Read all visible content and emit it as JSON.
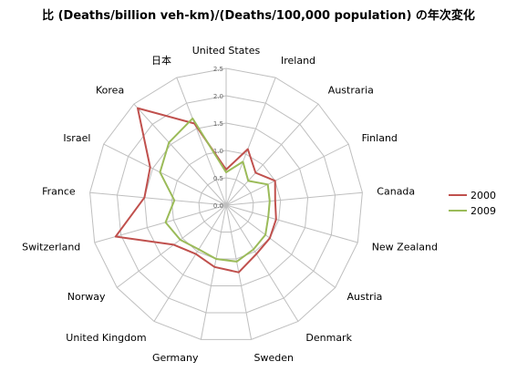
{
  "chart_data": {
    "type": "radar",
    "title": "比 (Deaths/billion veh-km)/(Deaths/100,000 population) の年次変化",
    "categories": [
      "United States",
      "Ireland",
      "Austraria",
      "Finland",
      "Canada",
      "New Zealand",
      "Austria",
      "Denmark",
      "Sweden",
      "Germany",
      "United Kingdom",
      "Norway",
      "Switzerland",
      "France",
      "Israel",
      "Korea",
      "日本"
    ],
    "ticks": [
      "0.0",
      "0.5",
      "1.0",
      "1.5",
      "2.0",
      "2.5"
    ],
    "rlim": [
      0,
      2.5
    ],
    "grid": true,
    "legend_position": "right",
    "series": [
      {
        "name": "2000",
        "color": "#c0504d",
        "values": [
          0.65,
          1.1,
          0.8,
          1.0,
          0.9,
          0.95,
          1.0,
          1.05,
          1.25,
          1.15,
          1.05,
          1.2,
          2.1,
          1.5,
          1.55,
          2.4,
          1.6
        ]
      },
      {
        "name": "2009",
        "color": "#9bbb59",
        "values": [
          0.6,
          0.85,
          0.6,
          0.85,
          0.8,
          0.8,
          0.9,
          0.95,
          1.05,
          1.0,
          0.95,
          1.05,
          1.15,
          0.95,
          1.35,
          1.55,
          1.7
        ]
      }
    ]
  }
}
